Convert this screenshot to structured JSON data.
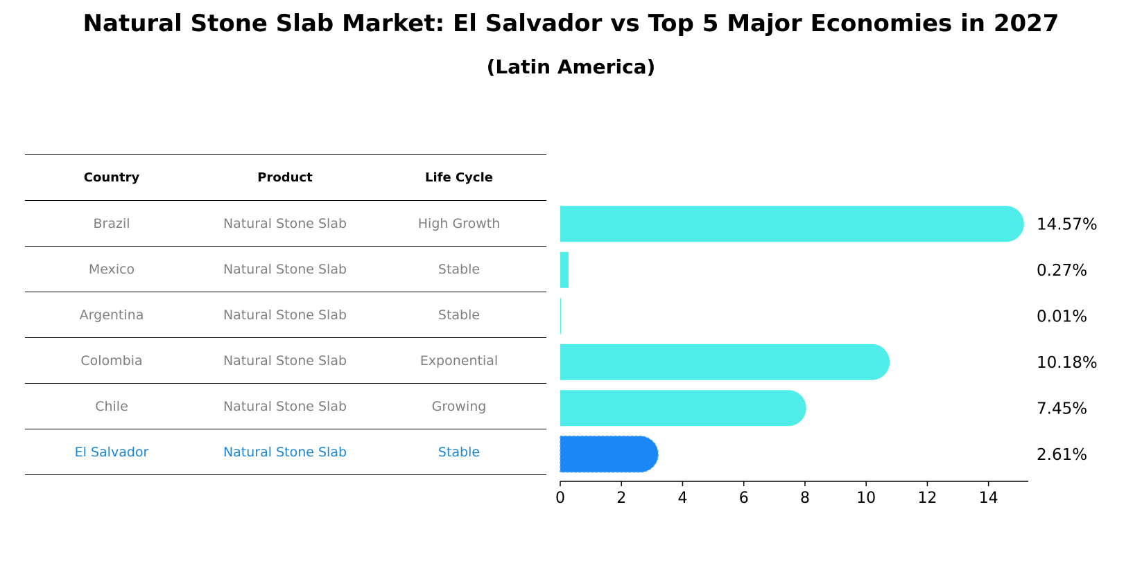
{
  "title": "Natural Stone Slab Market: El Salvador vs Top 5 Major Economies in 2027",
  "subtitle": "(Latin America)",
  "table": {
    "headers": [
      "Country",
      "Product",
      "Life Cycle"
    ],
    "rows": [
      {
        "country": "Brazil",
        "product": "Natural Stone Slab",
        "life_cycle": "High Growth"
      },
      {
        "country": "Mexico",
        "product": "Natural Stone Slab",
        "life_cycle": "Stable"
      },
      {
        "country": "Argentina",
        "product": "Natural Stone Slab",
        "life_cycle": "Stable"
      },
      {
        "country": "Colombia",
        "product": "Natural Stone Slab",
        "life_cycle": "Exponential"
      },
      {
        "country": "Chile",
        "product": "Natural Stone Slab",
        "life_cycle": "Growing"
      },
      {
        "country": "El Salvador",
        "product": "Natural Stone Slab",
        "life_cycle": "Stable"
      }
    ]
  },
  "chart_data": {
    "type": "bar",
    "orientation": "horizontal",
    "categories": [
      "Brazil",
      "Mexico",
      "Argentina",
      "Colombia",
      "Chile",
      "El Salvador"
    ],
    "values": [
      14.57,
      0.27,
      0.01,
      10.18,
      7.45,
      2.61
    ],
    "value_labels": [
      "14.57%",
      "0.27%",
      "0.01%",
      "10.18%",
      "7.45%",
      "2.61%"
    ],
    "xlim": [
      0,
      15.3
    ],
    "xticks": [
      0,
      2,
      4,
      6,
      8,
      10,
      12,
      14
    ],
    "grid": false,
    "colors": {
      "default": "#4fecea",
      "highlight": "#1a87f5"
    },
    "highlight_category": "El Salvador"
  }
}
